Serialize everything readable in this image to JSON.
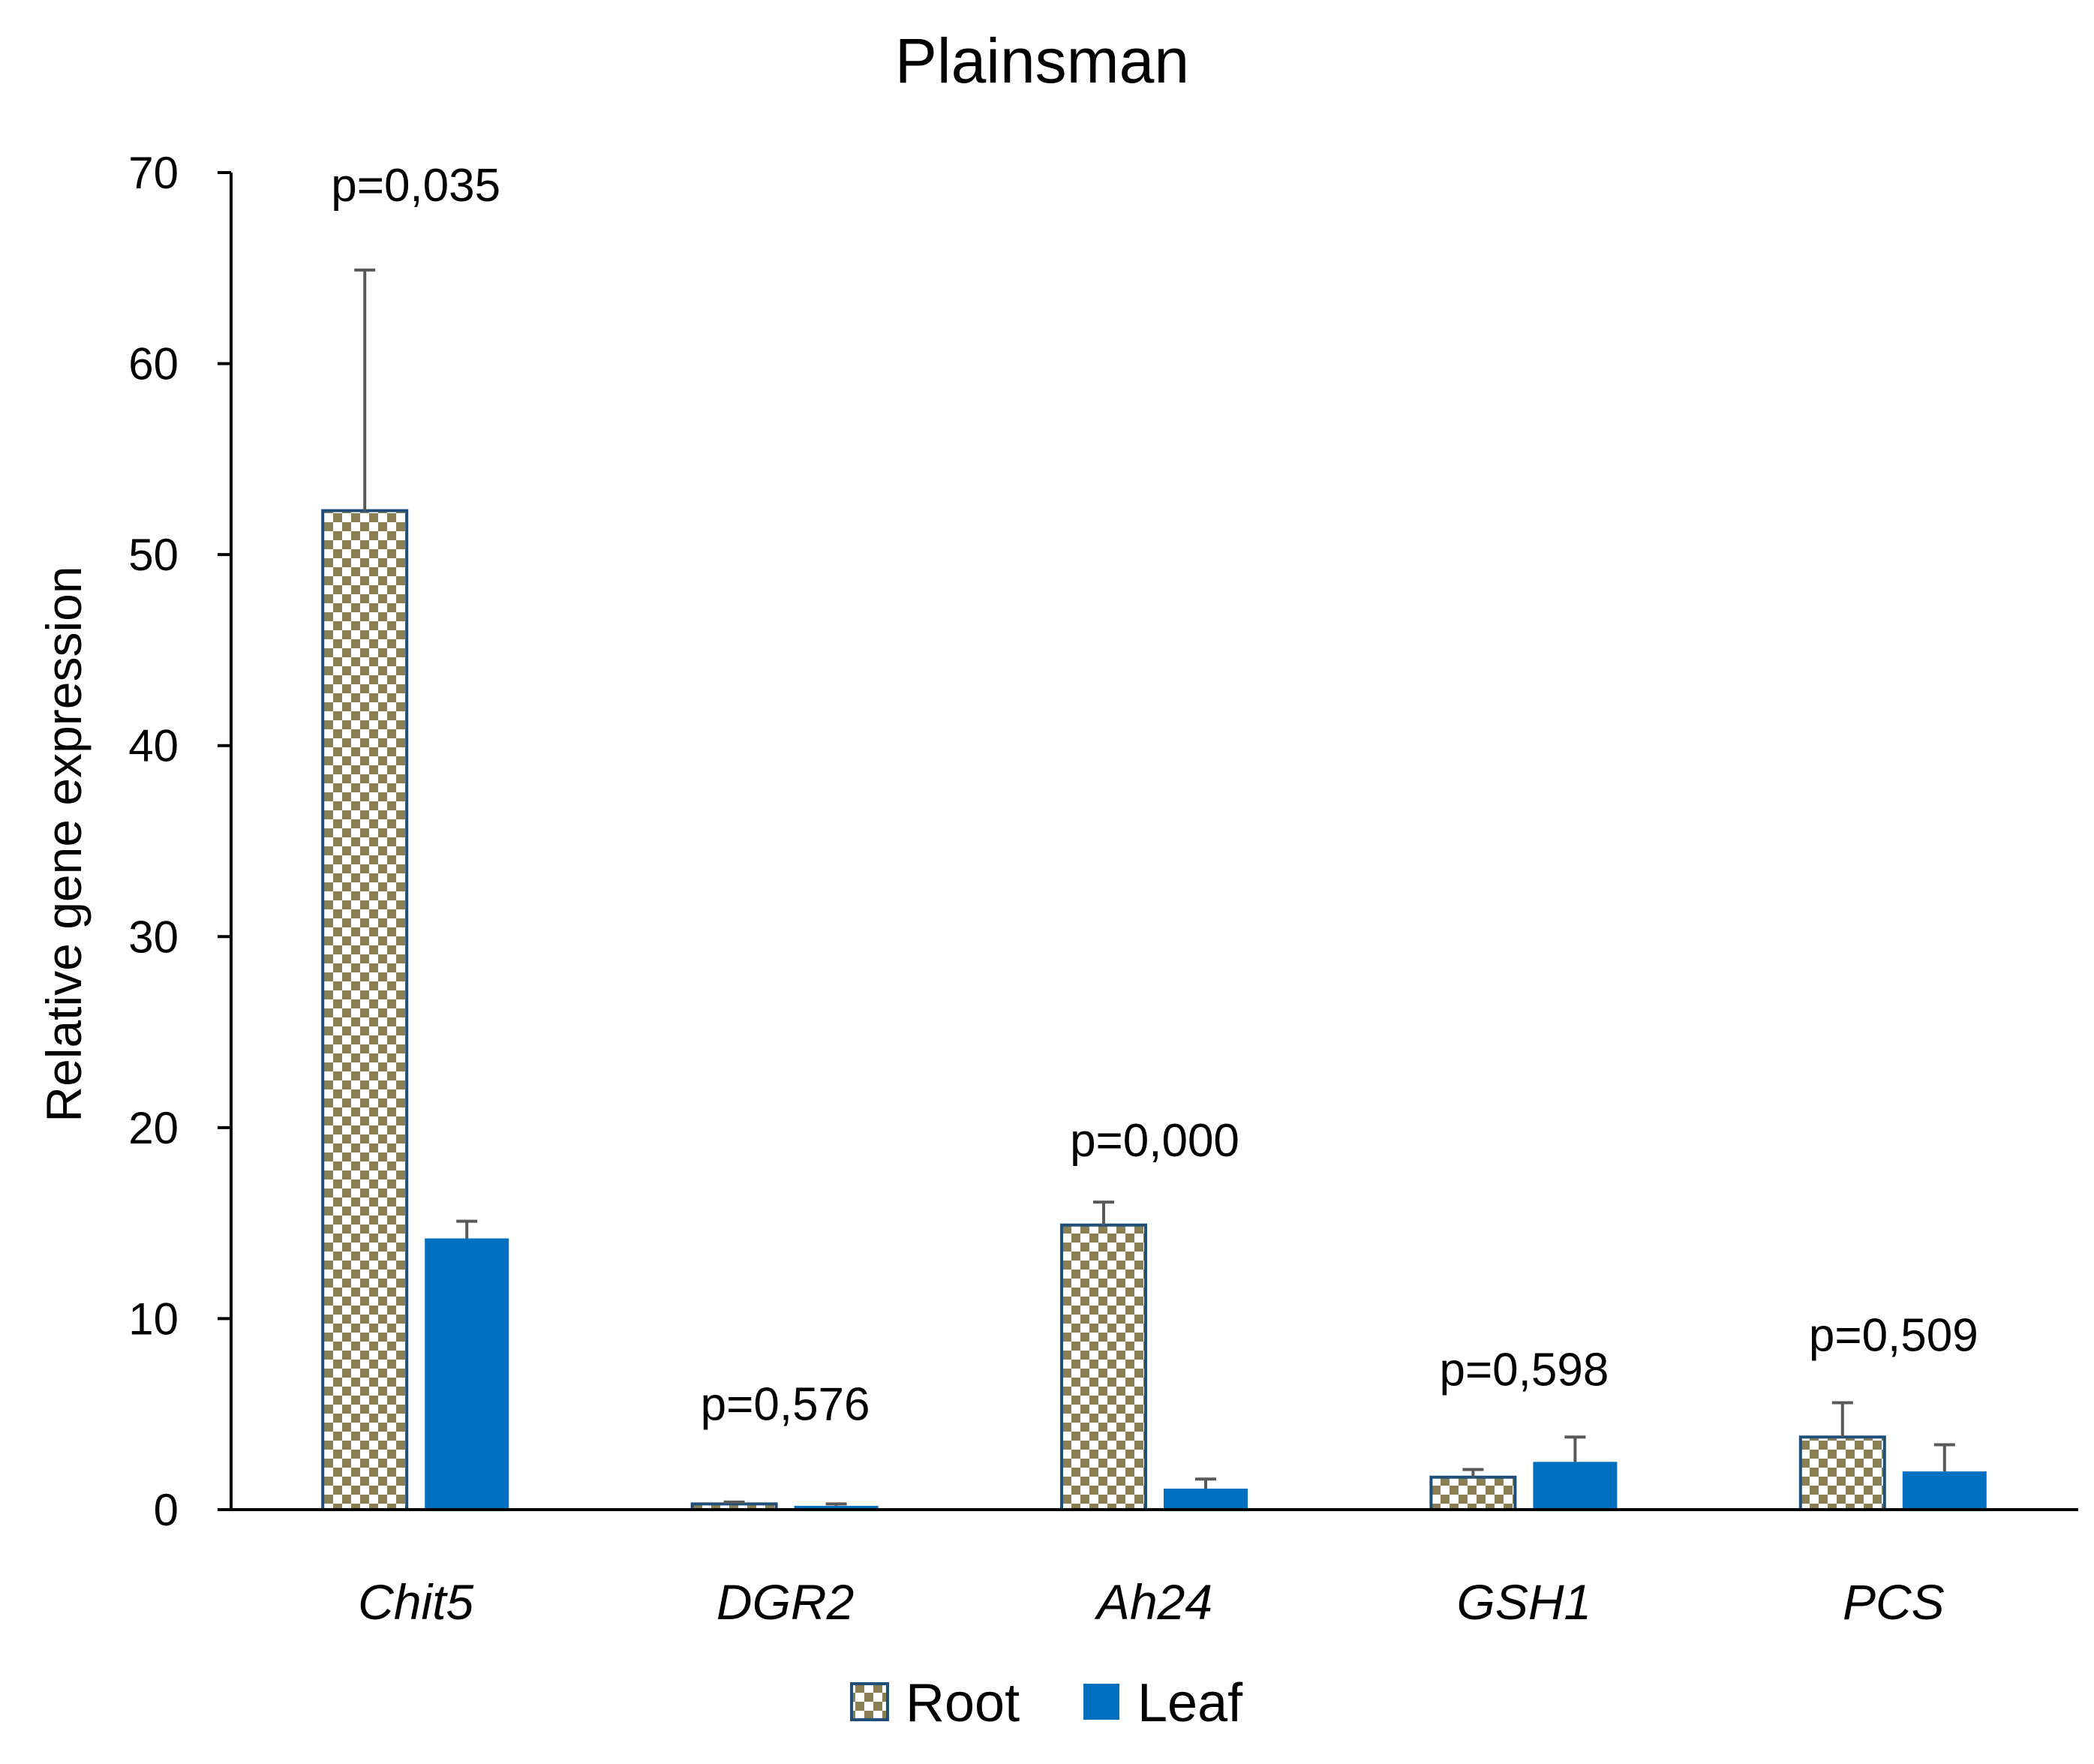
{
  "chart_data": {
    "type": "bar",
    "title": "Plainsman",
    "xlabel": "",
    "ylabel": "Relative gene expression",
    "ylim": [
      0,
      70
    ],
    "yticks": [
      0,
      10,
      20,
      30,
      40,
      50,
      60,
      70
    ],
    "grid": false,
    "legend_position": "bottom",
    "categories": [
      "Chit5",
      "DGR2",
      "Ah24",
      "GSH1",
      "PCS"
    ],
    "series": [
      {
        "name": "Root",
        "pattern": "checkerboard",
        "colors": {
          "check": "#8b7f55",
          "light": "#ffffff",
          "border": "#1f4e79"
        },
        "values": [
          52.3,
          0.3,
          14.9,
          1.7,
          3.8
        ],
        "errors": [
          12.6,
          0.1,
          1.2,
          0.4,
          1.8
        ]
      },
      {
        "name": "Leaf",
        "pattern": "solid",
        "colors": {
          "fill": "#0070c0"
        },
        "values": [
          14.2,
          0.2,
          1.1,
          2.5,
          2.0
        ],
        "errors": [
          0.9,
          0.1,
          0.5,
          1.3,
          1.4
        ]
      }
    ],
    "annotations": [
      {
        "category": "Chit5",
        "text": "p=0,035",
        "anchor_value": 68.5
      },
      {
        "category": "DGR2",
        "text": "p=0,576",
        "anchor_value": 4.7
      },
      {
        "category": "Ah24",
        "text": "p=0,000",
        "anchor_value": 18.5
      },
      {
        "category": "GSH1",
        "text": "p=0,598",
        "anchor_value": 6.5
      },
      {
        "category": "PCS",
        "text": "p=0,509",
        "anchor_value": 8.3
      }
    ]
  }
}
